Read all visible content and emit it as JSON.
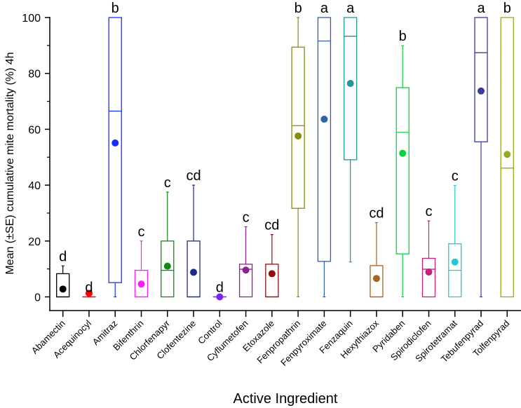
{
  "chart_data": {
    "type": "box",
    "title": "",
    "xlabel": "Active Ingredient",
    "ylabel": "Mean (±SE) cumulative mite mortality (%) 4h",
    "ylim": [
      0,
      100
    ],
    "yticks": [
      0,
      20,
      40,
      60,
      80,
      100
    ],
    "grid": false,
    "legend": "none",
    "categories": [
      "Abamectin",
      "Acequinocyl",
      "Amitraz",
      "Bifenthrin",
      "Chlorfenapyr",
      "Clofentezine",
      "Control",
      "Cyflumetofen",
      "Etoxazole",
      "Fenpropathrin",
      "Fenpyroximate",
      "Fenzaquin",
      "Hexythiazox",
      "Pyridaben",
      "Spirodiclofen",
      "Spirotetramat",
      "Tebufenpyrad",
      "Tolfenpyrad"
    ],
    "series": [
      {
        "name": "Abamectin",
        "min": 0,
        "q1": 0,
        "median": 0,
        "q3": 8.3,
        "max": 11.1,
        "mean": 2.8,
        "letter": "d",
        "color": "#000000"
      },
      {
        "name": "Acequinocyl",
        "min": 0,
        "q1": 0,
        "median": 0,
        "q3": 0,
        "max": 0,
        "mean": 1.3,
        "letter": "d",
        "color": "#ff0000"
      },
      {
        "name": "Amitraz",
        "min": 0,
        "q1": 5.1,
        "median": 66.5,
        "q3": 100,
        "max": 100,
        "mean": 55.1,
        "letter": "b",
        "color": "#1a2eff"
      },
      {
        "name": "Bifenthrin",
        "min": 0,
        "q1": 0,
        "median": 0,
        "q3": 9.5,
        "max": 20,
        "mean": 4.6,
        "letter": "c",
        "color": "#ff1aff"
      },
      {
        "name": "Chlorfenapyr",
        "min": 0,
        "q1": 0,
        "median": 9.5,
        "q3": 20,
        "max": 37.5,
        "mean": 11.0,
        "letter": "c",
        "color": "#108a10"
      },
      {
        "name": "Clofentezine",
        "min": 0,
        "q1": 0,
        "median": 0,
        "q3": 20,
        "max": 40,
        "mean": 8.8,
        "letter": "cd",
        "color": "#1a2a8a"
      },
      {
        "name": "Control",
        "min": 0,
        "q1": 0,
        "median": 0,
        "q3": 0,
        "max": 0,
        "mean": 0,
        "letter": "d",
        "color": "#8020ff"
      },
      {
        "name": "Cyflumetofen",
        "min": 0,
        "q1": 0,
        "median": 9.9,
        "q3": 11.7,
        "max": 25.1,
        "mean": 9.6,
        "letter": "c",
        "color": "#902090"
      },
      {
        "name": "Etoxazole",
        "min": 0,
        "q1": 0,
        "median": 0,
        "q3": 11.7,
        "max": 22.3,
        "mean": 8.3,
        "letter": "cd",
        "color": "#900e0e"
      },
      {
        "name": "Fenpropathrin",
        "min": 0,
        "q1": 31.7,
        "median": 61.3,
        "q3": 89.4,
        "max": 100,
        "mean": 57.6,
        "letter": "b",
        "color": "#8a8a10"
      },
      {
        "name": "Fenpyroximate",
        "min": 0,
        "q1": 12.7,
        "median": 91.6,
        "q3": 100,
        "max": 100,
        "mean": 63.6,
        "letter": "a",
        "color": "#3060a8"
      },
      {
        "name": "Fenzaquin",
        "min": 12.5,
        "q1": 49.1,
        "median": 93.3,
        "q3": 100,
        "max": 100,
        "mean": 76.4,
        "letter": "a",
        "color": "#209898"
      },
      {
        "name": "Hexythiazox",
        "min": 0,
        "q1": 0,
        "median": 0,
        "q3": 11.2,
        "max": 26.6,
        "mean": 6.6,
        "letter": "cd",
        "color": "#a86420"
      },
      {
        "name": "Pyridaben",
        "min": 0,
        "q1": 15.4,
        "median": 58.9,
        "q3": 74.9,
        "max": 89.9,
        "mean": 51.4,
        "letter": "b",
        "color": "#10d040"
      },
      {
        "name": "Spirodiclofen",
        "min": 0,
        "q1": 0,
        "median": 9.9,
        "q3": 13.8,
        "max": 27.2,
        "mean": 8.9,
        "letter": "c",
        "color": "#c8207a"
      },
      {
        "name": "Spirotetramat",
        "min": 0,
        "q1": 0,
        "median": 9.5,
        "q3": 19.0,
        "max": 39.9,
        "mean": 12.5,
        "letter": "c",
        "color": "#28c8d0"
      },
      {
        "name": "Tebufenpyrad",
        "min": 0,
        "q1": 55.5,
        "median": 87.4,
        "q3": 100,
        "max": 100,
        "mean": 73.7,
        "letter": "a",
        "color": "#3a3aa0"
      },
      {
        "name": "Tolfenpyrad",
        "min": 0,
        "q1": 0,
        "median": 46.1,
        "q3": 100,
        "max": 100,
        "mean": 51.0,
        "letter": "b",
        "color": "#90ac20"
      }
    ]
  }
}
